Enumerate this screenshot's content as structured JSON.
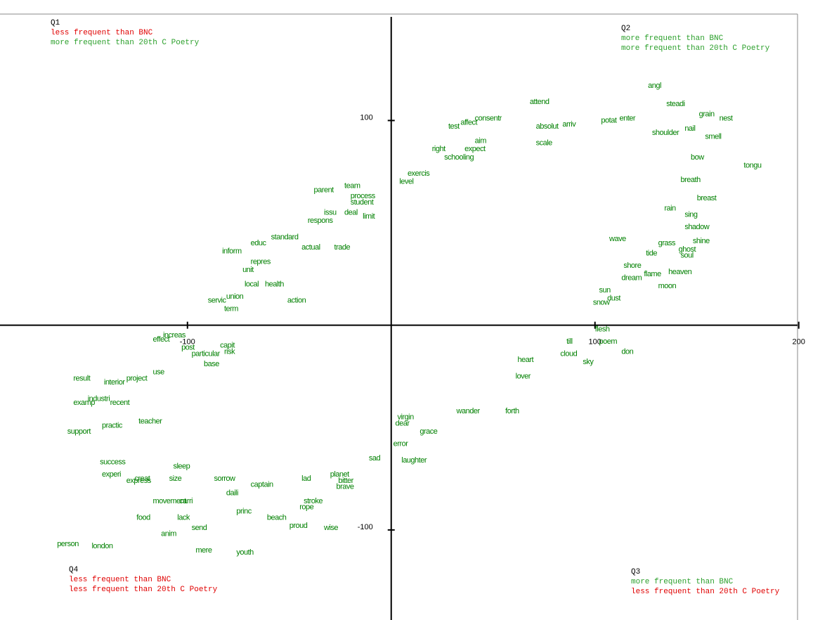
{
  "chart_data": {
    "type": "scatter",
    "color": "#008000",
    "xlim": [
      -192,
      207
    ],
    "ylim": [
      -144,
      152
    ],
    "xticks": [
      -100,
      100,
      200
    ],
    "yticks": [
      100,
      -100
    ],
    "quadrants": [
      {
        "name": "Q1",
        "lines": [
          {
            "text": "less frequent than BNC",
            "color": "#e00000"
          },
          {
            "text": "more frequent than 20th C Poetry",
            "color": "#2ca02c"
          }
        ]
      },
      {
        "name": "Q2",
        "lines": [
          {
            "text": "more frequent than BNC",
            "color": "#2ca02c"
          },
          {
            "text": "more frequent than 20th C Poetry",
            "color": "#2ca02c"
          }
        ]
      },
      {
        "name": "Q4",
        "lines": [
          {
            "text": "less frequent than BNC",
            "color": "#e00000"
          },
          {
            "text": "less frequent than 20th C Poetry",
            "color": "#e00000"
          }
        ]
      },
      {
        "name": "Q3",
        "lines": [
          {
            "text": "more frequent than BNC",
            "color": "#2ca02c"
          },
          {
            "text": "less frequent than 20th C Poetry",
            "color": "#e00000"
          }
        ]
      }
    ],
    "labels": [
      "angl",
      "steadi",
      "attend",
      "grain",
      "nest",
      "test",
      "affect",
      "consentr",
      "absolut",
      "arriv",
      "potat",
      "enter",
      "nail",
      "shoulder",
      "smell",
      "aim",
      "right",
      "expect",
      "scale",
      "schooling",
      "bow",
      "tongu",
      "exercis",
      "level",
      "breath",
      "team",
      "parent",
      "process",
      "breast",
      "student",
      "rain",
      "sing",
      "issu",
      "deal",
      "respons",
      "limit",
      "shadow",
      "shine",
      "standard",
      "educ",
      "grass",
      "ghost",
      "inform",
      "soul",
      "tide",
      "actual",
      "trade",
      "wave",
      "repres",
      "unit",
      "shore",
      "heaven",
      "flame",
      "dream",
      "local",
      "health",
      "moon",
      "sun",
      "union",
      "action",
      "dust",
      "snow",
      "servic",
      "term",
      "flesh",
      "poem",
      "till",
      "cloud",
      "don",
      "sky",
      "increas",
      "effect",
      "post",
      "particular",
      "risk",
      "capit",
      "base",
      "result",
      "interior",
      "project",
      "use",
      "heart",
      "lover",
      "industri",
      "recent",
      "examp",
      "wander",
      "forth",
      "virgin",
      "dear",
      "practic",
      "support",
      "grace",
      "teacher",
      "error",
      "laughter",
      "sad",
      "success",
      "sleep",
      "experi",
      "creat",
      "express",
      "size",
      "sorrow",
      "planet",
      "bitter",
      "brave",
      "captain",
      "daili",
      "lad",
      "movement",
      "carri",
      "stroke",
      "rope",
      "princ",
      "food",
      "lack",
      "beach",
      "proud",
      "wise",
      "send",
      "anim",
      "person",
      "london",
      "mere",
      "youth"
    ],
    "x": [
      126,
      135,
      68,
      151,
      161,
      28,
      34,
      41,
      71,
      84,
      103,
      112,
      144,
      128,
      154,
      41,
      20,
      36,
      71,
      26,
      147,
      173,
      8,
      4,
      142,
      -23,
      -38,
      -20,
      150,
      -20,
      134,
      144,
      -33,
      -23,
      -41,
      -14,
      144,
      148,
      -59,
      -69,
      131,
      141,
      -83,
      142,
      125,
      -44,
      -28,
      107,
      -69,
      -73,
      114,
      136,
      124,
      113,
      -72,
      -62,
      131,
      102,
      -81,
      -51,
      106,
      99,
      -90,
      -82,
      100,
      102,
      86,
      83,
      113,
      94,
      -112,
      -117,
      -103,
      -98,
      -82,
      -84,
      -92,
      -156,
      -141,
      -130,
      -117,
      62,
      61,
      -149,
      -138,
      -156,
      32,
      56,
      3,
      2,
      -142,
      -159,
      14,
      -124,
      1,
      5,
      -11,
      -143,
      -107,
      -142,
      -126,
      -130,
      -109,
      -87,
      -30,
      -26,
      -27,
      -69,
      -81,
      -44,
      -117,
      -104,
      -43,
      -45,
      -76,
      -125,
      -105,
      -61,
      -50,
      -33,
      -98,
      -113,
      -164,
      -147,
      -96,
      -76
    ],
    "y": [
      117,
      108,
      109,
      103,
      101,
      97,
      99,
      101,
      97,
      98,
      100,
      101,
      96,
      94,
      92,
      90,
      86,
      86,
      89,
      82,
      82,
      78,
      74,
      70,
      71,
      68,
      66,
      63,
      62,
      60,
      57,
      54,
      55,
      55,
      51,
      53,
      48,
      41,
      43,
      40,
      40,
      37,
      36,
      34,
      35,
      38,
      38,
      42,
      31,
      27,
      29,
      26,
      25,
      23,
      20,
      20,
      19,
      17,
      14,
      12,
      13,
      11,
      12,
      8,
      -2,
      -8,
      -8,
      -14,
      -13,
      -18,
      -5,
      -7,
      -11,
      -14,
      -13,
      -10,
      -19,
      -26,
      -28,
      -26,
      -23,
      -17,
      -25,
      -36,
      -38,
      -38,
      -42,
      -42,
      -45,
      -48,
      -49,
      -52,
      -52,
      -47,
      -58,
      -66,
      -65,
      -67,
      -69,
      -73,
      -75,
      -76,
      -75,
      -75,
      -73,
      -76,
      -79,
      -78,
      -82,
      -75,
      -86,
      -86,
      -86,
      -89,
      -91,
      -94,
      -94,
      -94,
      -98,
      -99,
      -99,
      -102,
      -107,
      -108,
      -110,
      -111
    ]
  }
}
